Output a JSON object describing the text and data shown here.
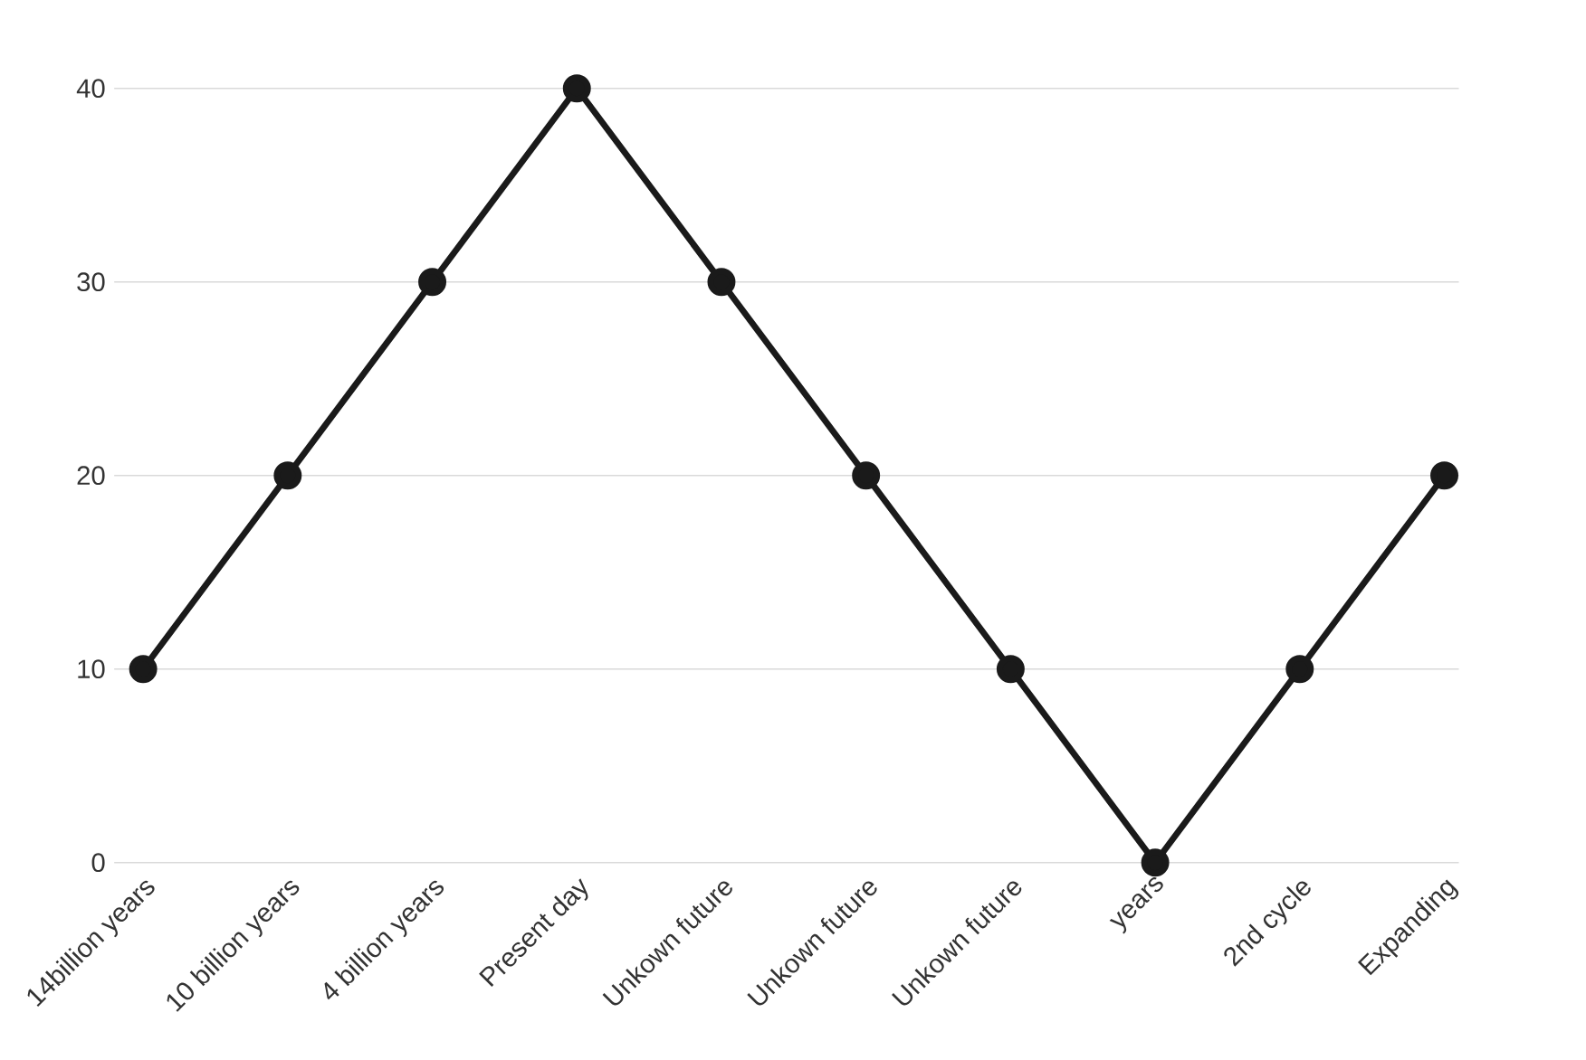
{
  "chart_data": {
    "type": "line",
    "categories": [
      "14billion years",
      "10 billion years",
      "4 billion years",
      "Present day",
      "Unkown future",
      "Unkown future",
      "Unkown future",
      "years",
      "2nd cycle",
      "Expanding"
    ],
    "series": [
      {
        "color": "#1a1a1a",
        "values": [
          10,
          20,
          30,
          40,
          30,
          20,
          10,
          0,
          10,
          20
        ]
      }
    ],
    "ylim": [
      0,
      40
    ],
    "yticks": [
      0,
      10,
      20,
      30,
      40
    ],
    "grid": "y",
    "marker": "circle",
    "line_style": "solid"
  }
}
